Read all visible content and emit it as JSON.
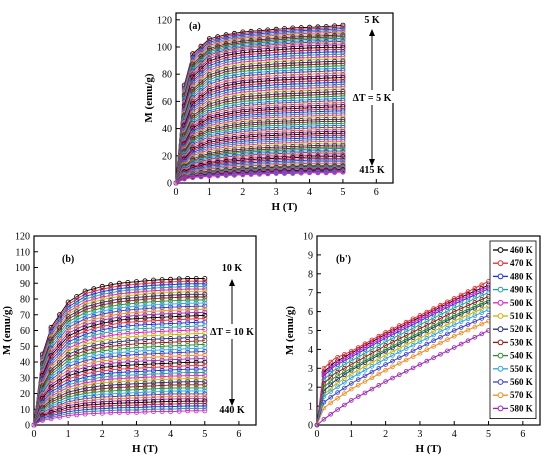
{
  "chart_data": [
    {
      "panel": "(a)",
      "type": "line",
      "xlabel": "H (T)",
      "ylabel": "M (emu/g)",
      "xlim": [
        0,
        6.5
      ],
      "ylim": [
        0,
        125
      ],
      "xticks": [
        "0",
        "1",
        "2",
        "3",
        "4",
        "5",
        "6"
      ],
      "yticks": [
        "0",
        "20",
        "40",
        "60",
        "80",
        "100",
        "120"
      ],
      "annotations": {
        "top": "5 K",
        "middle": "ΔT = 5 K",
        "bottom": "415 K"
      },
      "curve_count": 83,
      "x": [
        0,
        0.25,
        0.5,
        1,
        1.5,
        2,
        2.5,
        3,
        3.5,
        4,
        4.5,
        5
      ],
      "series": [
        {
          "values": [
            0,
            72,
            95,
            106,
            109,
            111,
            112,
            113,
            114,
            114.5,
            115,
            116
          ]
        },
        {
          "values": [
            0,
            58,
            80,
            92,
            96,
            98,
            99,
            100,
            101,
            101.5,
            102,
            102
          ]
        },
        {
          "values": [
            0,
            45,
            62,
            72,
            76,
            78,
            79,
            80,
            80.5,
            81,
            81.5,
            82
          ]
        },
        {
          "values": [
            0,
            32,
            45,
            53,
            56,
            58,
            59,
            60,
            60.5,
            61,
            61.5,
            62
          ]
        },
        {
          "values": [
            0,
            22,
            31,
            37,
            39,
            41,
            42,
            42.5,
            43,
            43.5,
            44,
            44
          ]
        },
        {
          "values": [
            0,
            12,
            17,
            21,
            23,
            24,
            25,
            25.5,
            26,
            26.5,
            27,
            27
          ]
        },
        {
          "values": [
            0,
            5,
            7,
            9,
            10,
            11,
            11.5,
            12,
            12.5,
            13,
            13,
            13
          ]
        },
        {
          "values": [
            0,
            3,
            4,
            5,
            5.5,
            6,
            6.5,
            7,
            7,
            7.5,
            7.5,
            8
          ]
        }
      ]
    },
    {
      "panel": "(b)",
      "type": "line",
      "xlabel": "H (T)",
      "ylabel": "M (emu/g)",
      "xlim": [
        0,
        6.5
      ],
      "ylim": [
        0,
        120
      ],
      "xticks": [
        "0",
        "1",
        "2",
        "3",
        "4",
        "5",
        "6"
      ],
      "yticks": [
        "0",
        "10",
        "20",
        "30",
        "40",
        "50",
        "60",
        "70",
        "80",
        "90",
        "100",
        "110",
        "120"
      ],
      "annotations": {
        "top": "10 K",
        "middle": "ΔT = 10 K",
        "bottom": "440 K"
      },
      "curve_count": 44,
      "x": [
        0,
        0.25,
        0.5,
        1,
        1.5,
        2,
        2.5,
        3,
        3.5,
        4,
        4.5,
        5
      ],
      "series": [
        {
          "values": [
            0,
            45,
            62,
            78,
            85,
            88,
            90,
            91,
            92,
            92.5,
            93,
            93
          ]
        },
        {
          "values": [
            0,
            38,
            53,
            67,
            73,
            76,
            78,
            79,
            80,
            80.5,
            81,
            81
          ]
        },
        {
          "values": [
            0,
            30,
            42,
            54,
            59,
            62,
            64,
            65,
            65.5,
            66,
            66.5,
            67
          ]
        },
        {
          "values": [
            0,
            22,
            31,
            40,
            44,
            46,
            47,
            48,
            48.5,
            49,
            49.5,
            50
          ]
        },
        {
          "values": [
            0,
            14,
            20,
            26,
            29,
            31,
            32,
            32.5,
            33,
            33.5,
            34,
            34
          ]
        },
        {
          "values": [
            0,
            8,
            11,
            15,
            17,
            18,
            18.5,
            19,
            19.5,
            20,
            20,
            20
          ]
        },
        {
          "values": [
            0,
            3,
            4,
            6,
            7,
            7.5,
            8,
            8,
            8.5,
            8.5,
            9,
            9
          ]
        }
      ]
    },
    {
      "panel": "(b')",
      "type": "line",
      "xlabel": "H (T)",
      "ylabel": "M (emu/g)",
      "xlim": [
        0,
        6.5
      ],
      "ylim": [
        0,
        10
      ],
      "xticks": [
        "0",
        "1",
        "2",
        "3",
        "4",
        "5",
        "6"
      ],
      "yticks": [
        "0",
        "1",
        "2",
        "3",
        "4",
        "5",
        "6",
        "7",
        "8",
        "9",
        "10"
      ],
      "legend": "right",
      "x": [
        0,
        0.2,
        0.5,
        1,
        2,
        3,
        4,
        5
      ],
      "series": [
        {
          "name": "460 K",
          "color": "#000000",
          "values": [
            0,
            2.8,
            3.3,
            3.8,
            4.8,
            5.7,
            6.6,
            7.4
          ]
        },
        {
          "name": "470 K",
          "color": "#e8252b",
          "values": [
            0,
            3.0,
            3.5,
            3.9,
            4.9,
            5.8,
            6.7,
            7.6
          ]
        },
        {
          "name": "480 K",
          "color": "#1f2fd9",
          "values": [
            0,
            2.6,
            3.1,
            3.6,
            4.6,
            5.5,
            6.4,
            7.2
          ]
        },
        {
          "name": "490 K",
          "color": "#1aa39a",
          "values": [
            0,
            2.4,
            2.9,
            3.4,
            4.4,
            5.3,
            6.2,
            7.0
          ]
        },
        {
          "name": "500 K",
          "color": "#e020c8",
          "values": [
            0,
            2.7,
            3.2,
            3.7,
            4.7,
            5.6,
            6.5,
            7.3
          ]
        },
        {
          "name": "510 K",
          "color": "#c9b400",
          "values": [
            0,
            1.6,
            2.1,
            2.7,
            3.7,
            4.6,
            5.5,
            6.3
          ]
        },
        {
          "name": "520 K",
          "color": "#232c7a",
          "values": [
            0,
            1.8,
            2.3,
            2.9,
            3.9,
            4.8,
            5.7,
            6.5
          ]
        },
        {
          "name": "530 K",
          "color": "#8e1a1a",
          "values": [
            0,
            2.2,
            2.7,
            3.2,
            4.2,
            5.1,
            6.0,
            6.8
          ]
        },
        {
          "name": "540 K",
          "color": "#2a8d2a",
          "values": [
            0,
            2.0,
            2.5,
            3.0,
            4.0,
            4.9,
            5.8,
            6.6
          ]
        },
        {
          "name": "550 K",
          "color": "#2aa5e0",
          "values": [
            0,
            1.5,
            1.9,
            2.5,
            3.5,
            4.4,
            5.3,
            6.1
          ]
        },
        {
          "name": "560 K",
          "color": "#3d3dcc",
          "values": [
            0,
            1.2,
            1.6,
            2.2,
            3.2,
            4.1,
            5.0,
            5.8
          ]
        },
        {
          "name": "570 K",
          "color": "#f08a1a",
          "values": [
            0,
            0.9,
            1.3,
            1.9,
            2.9,
            3.8,
            4.7,
            5.5
          ]
        },
        {
          "name": "580 K",
          "color": "#9b24b8",
          "values": [
            0,
            0.3,
            0.7,
            1.3,
            2.3,
            3.2,
            4.1,
            5.0
          ]
        }
      ]
    }
  ]
}
